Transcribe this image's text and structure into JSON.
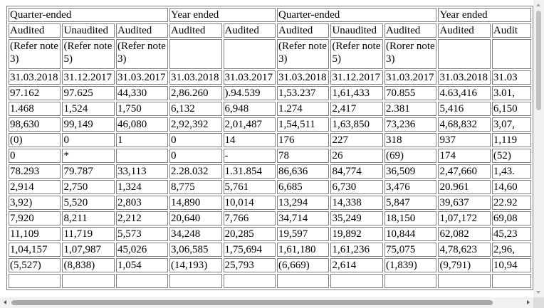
{
  "table": {
    "header_periods": [
      "Quarter-ended",
      "Year ended",
      "Quarter-ended",
      "Year ended"
    ],
    "header_status": [
      "Audited",
      "Unaudited",
      "Audited",
      "Audited",
      "Audited",
      "Audited",
      "Unaudited",
      "Audited",
      "Audited",
      "Audit"
    ],
    "header_notes": [
      "(Refer note 3)",
      "(Refer note 5)",
      "(Refer note 3)",
      "",
      "",
      "(Refer note 3)",
      "(Refer note 5)",
      "(Rorer note 3)",
      "",
      ""
    ],
    "rows": [
      [
        "31.03.2018",
        "31.12.2017",
        "31.03.2017",
        "31.03.2018",
        "31.03.2017",
        "31.03.2018",
        "31.12.2017",
        "31.03.2017",
        "31.03.2018",
        "31.03"
      ],
      [
        "97.162",
        "97.625",
        "44,330",
        "2,86.260",
        ").94.539",
        "1,53.237",
        "1,61,433",
        "70.855",
        "4.63,416",
        "3.01,"
      ],
      [
        "1.468",
        "1,524",
        "1,750",
        "6,132",
        "6,948",
        "1.274",
        "2,417",
        "2.381",
        "5,416",
        "6,150"
      ],
      [
        "98,630",
        "99,149",
        "46,080",
        "2,92,392",
        "2,01,487",
        "1,54,511",
        "1,63,850",
        "73,236",
        "4,68,832",
        "3,07,"
      ],
      [
        "(0)",
        "0",
        "1",
        "0",
        "14",
        "176",
        "227",
        "318",
        "937",
        "1,119"
      ],
      [
        "0",
        "*",
        "",
        "0",
        "-",
        "78",
        "26",
        "(69)",
        "174",
        "(52)"
      ],
      [
        "78.293",
        "79.787",
        "33,113",
        "2.28.032",
        "1.31.854",
        "86,636",
        "84,774",
        "36,509",
        "2,47,660",
        "1,43."
      ],
      [
        "2,914",
        "2,750",
        "1,324",
        "8,775",
        "5,761",
        "6,685",
        "6,730",
        "3,476",
        "20.961",
        "14,60"
      ],
      [
        "3,92)",
        "5,520",
        "2,803",
        "14,890",
        "10,014",
        "13,294",
        "14,338",
        "5,847",
        "39,637",
        "22.92"
      ],
      [
        "7,920",
        "8,211",
        "2,212",
        "20,640",
        "7,766",
        "34,714",
        "35,249",
        "18,150",
        "1,07,172",
        "69,08"
      ],
      [
        "11,109",
        "11,719",
        "5,573",
        "34,248",
        "20,285",
        "19,597",
        "19,892",
        "10,844",
        "62,082",
        "45,23"
      ],
      [
        "1,04,157",
        "1,07,987",
        "45,026",
        "3,06,585",
        "1,75,694",
        "1,61,180",
        "1,61,236",
        "75,075",
        "4,78,623",
        "2,96,"
      ],
      [
        "(5,527)",
        "(8,838)",
        "1,054",
        "(14,193)",
        "25,793",
        "(6,669)",
        "2,614",
        "(1,839)",
        "(9,791)",
        "10,94"
      ],
      [
        "",
        "",
        "",
        "",
        "",
        "",
        "",
        "",
        "",
        ""
      ]
    ]
  },
  "scrollbars": {
    "vertical_position": 0.0,
    "horizontal_position": 0.0
  }
}
